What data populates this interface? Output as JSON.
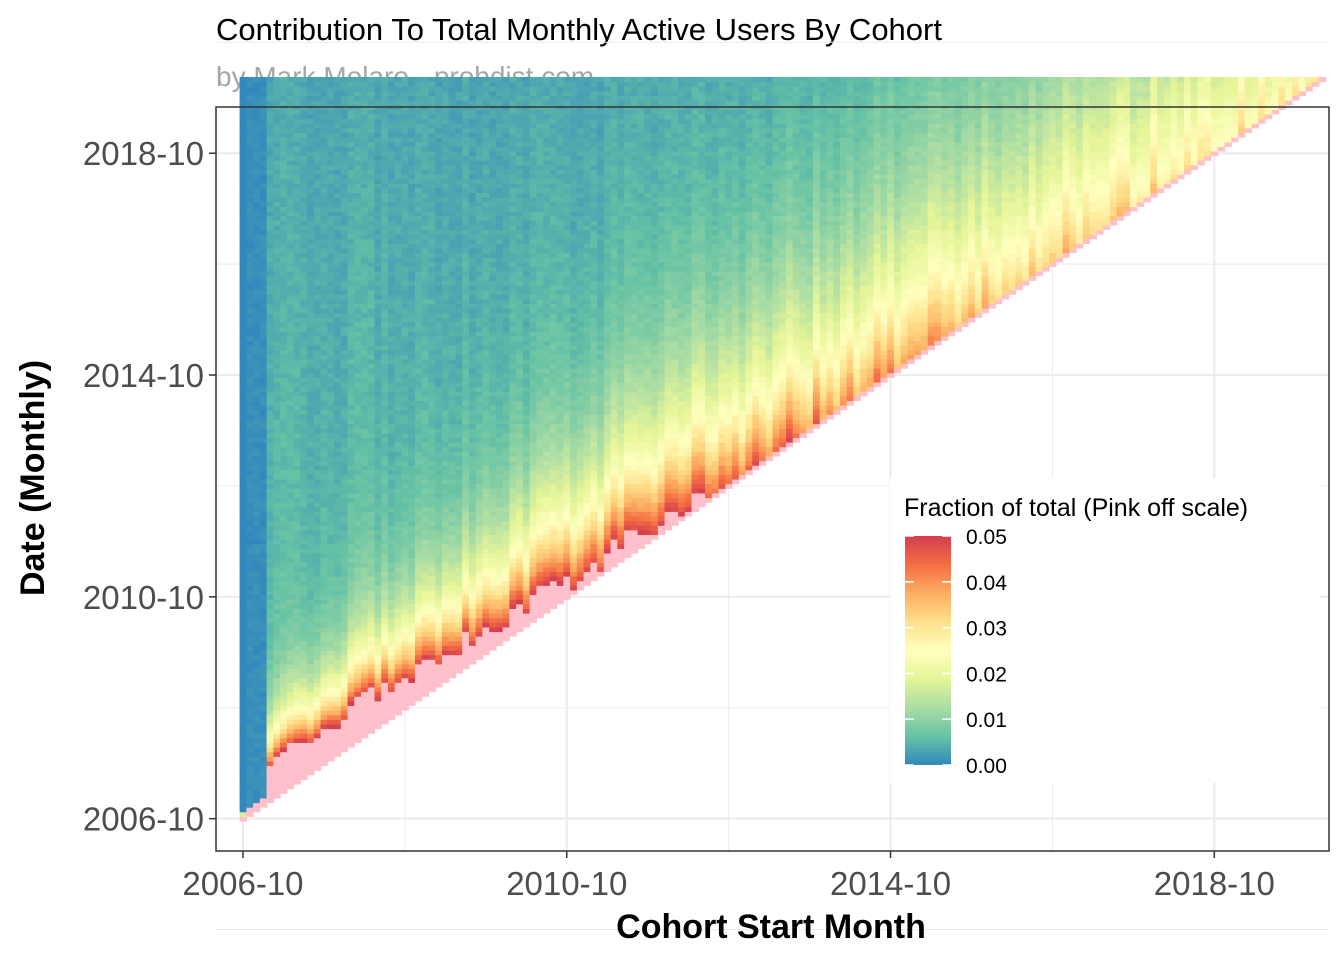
{
  "chart_data": {
    "type": "heatmap",
    "title": "Contribution To Total Monthly Active Users By Cohort",
    "subtitle": "by Mark Molaro - probdist.com",
    "xlabel": "Cohort Start Month",
    "ylabel": "Date (Monthly)",
    "x_ticks": [
      "2006-10",
      "2010-10",
      "2014-10",
      "2018-10"
    ],
    "y_ticks": [
      "2006-10",
      "2010-10",
      "2014-10",
      "2018-10"
    ],
    "x_range": [
      "2006-06",
      "2020-03"
    ],
    "y_range": [
      "2006-03",
      "2019-08"
    ],
    "data_start": "2006-10",
    "data_end": "2020-02",
    "off_scale_color": "#ffc0cb",
    "legend": {
      "title": "Fraction of total (Pink off scale)",
      "labels": [
        "0.05",
        "0.04",
        "0.03",
        "0.02",
        "0.01",
        "0.00"
      ],
      "values": [
        0.05,
        0.04,
        0.03,
        0.02,
        0.01,
        0.0
      ],
      "colors": [
        "#d53e4f",
        "#f46d43",
        "#fdae61",
        "#fee08b",
        "#ffffbf",
        "#e6f598",
        "#abdda4",
        "#66c2a5",
        "#3288bd"
      ],
      "placement": "bottom-right inside"
    },
    "grid": true,
    "panel_border": true
  }
}
